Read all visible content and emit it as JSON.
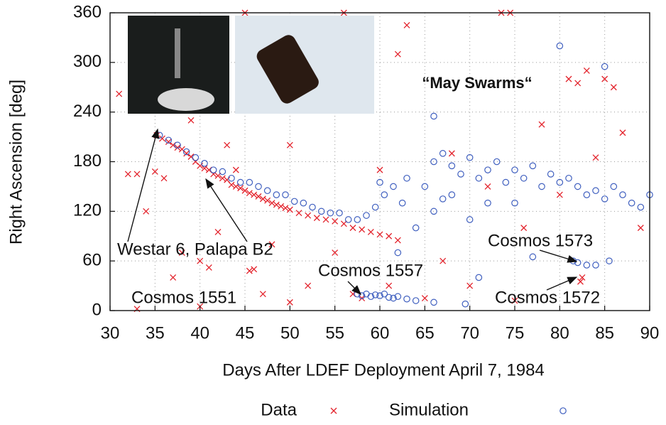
{
  "chart_data": {
    "type": "scatter",
    "xlabel": "Days After LDEF Deployment April 7, 1984",
    "ylabel": "Right Ascension [deg]",
    "xlim": [
      30,
      90
    ],
    "ylim": [
      0,
      360
    ],
    "xticks": [
      30,
      35,
      40,
      45,
      50,
      55,
      60,
      65,
      70,
      75,
      80,
      85,
      90
    ],
    "yticks": [
      0,
      60,
      120,
      180,
      240,
      300,
      360
    ],
    "grid": true,
    "legend": "bottom",
    "annotations": [
      "Westar 6, Palapa B2",
      "Cosmos 1551",
      "Cosmos 1557",
      "Cosmos 1573",
      "Cosmos 1572",
      "“May Swarms“"
    ],
    "series": [
      {
        "name": "Data",
        "color": "#e3232c",
        "marker": "x",
        "x": [
          35.2,
          35.8,
          36.5,
          37,
          37.5,
          38,
          38.5,
          39,
          39.5,
          40,
          40.5,
          41,
          41.5,
          42,
          42.5,
          43,
          43.5,
          44,
          44.5,
          45,
          45.5,
          46,
          46.5,
          47,
          47.5,
          48,
          48.5,
          49,
          49.5,
          50,
          51,
          52,
          53,
          54,
          55,
          56,
          57,
          58,
          59,
          60,
          61,
          62,
          31,
          32,
          33,
          34,
          35,
          36,
          37,
          38,
          39,
          40,
          41,
          42,
          43,
          44,
          45,
          45.5,
          46,
          47,
          48,
          50,
          52,
          55,
          56,
          57,
          58,
          60,
          62,
          63,
          65,
          67,
          68,
          70,
          72,
          73.5,
          74.5,
          76,
          78,
          80,
          81,
          82,
          83,
          82.5,
          82.3,
          84,
          85,
          86,
          87,
          89,
          33,
          40,
          50,
          61,
          75
        ],
        "values": [
          212,
          208,
          204,
          200,
          197,
          195,
          190,
          186,
          180,
          175,
          172,
          170,
          165,
          163,
          160,
          158,
          152,
          150,
          148,
          145,
          142,
          140,
          138,
          135,
          133,
          130,
          128,
          126,
          124,
          122,
          118,
          115,
          112,
          110,
          108,
          105,
          100,
          98,
          95,
          92,
          90,
          85,
          262,
          165,
          165,
          120,
          168,
          160,
          40,
          70,
          230,
          60,
          52,
          95,
          200,
          170,
          360,
          48,
          50,
          20,
          80,
          200,
          30,
          70,
          360,
          20,
          15,
          170,
          310,
          345,
          15,
          60,
          190,
          30,
          150,
          360,
          360,
          100,
          225,
          140,
          280,
          275,
          290,
          40,
          35,
          185,
          280,
          270,
          215,
          100,
          2,
          5,
          10,
          30,
          12
        ]
      },
      {
        "name": "Simulation",
        "color": "#3f5fbf",
        "marker": "circle",
        "x": [
          35.5,
          36.5,
          37.5,
          38.5,
          39.5,
          40.5,
          41.5,
          42.5,
          43.5,
          44.5,
          45.5,
          46.5,
          47.5,
          48.5,
          49.5,
          50.5,
          51.5,
          52.5,
          53.5,
          54.5,
          55.5,
          56.5,
          57.5,
          58.5,
          59.5,
          60.5,
          61.5,
          62.5,
          57.5,
          58,
          58.5,
          59,
          59.5,
          60,
          60.5,
          61,
          61.5,
          62,
          63,
          64,
          66,
          69.5,
          65,
          66,
          67,
          68,
          69,
          70,
          71,
          72,
          73,
          74,
          75,
          76,
          77,
          78,
          79,
          80,
          81,
          82,
          83,
          84,
          85,
          86,
          87,
          88,
          89,
          90,
          66,
          68,
          70,
          72,
          75,
          80,
          85,
          66,
          77,
          81.5,
          82,
          83,
          84,
          85.5,
          71,
          60,
          63,
          64,
          62,
          67
        ],
        "values": [
          212,
          206,
          200,
          192,
          185,
          178,
          170,
          168,
          160,
          155,
          155,
          150,
          145,
          140,
          140,
          132,
          130,
          125,
          120,
          118,
          118,
          110,
          110,
          115,
          125,
          140,
          150,
          130,
          20,
          18,
          20,
          17,
          19,
          18,
          20,
          16,
          15,
          17,
          14,
          12,
          10,
          8,
          150,
          180,
          190,
          175,
          165,
          185,
          160,
          170,
          180,
          155,
          170,
          160,
          175,
          150,
          165,
          155,
          160,
          150,
          140,
          145,
          135,
          150,
          140,
          130,
          125,
          140,
          120,
          140,
          110,
          130,
          130,
          320,
          295,
          235,
          65,
          60,
          58,
          55,
          55,
          60,
          40,
          155,
          160,
          100,
          70,
          135
        ]
      }
    ]
  }
}
